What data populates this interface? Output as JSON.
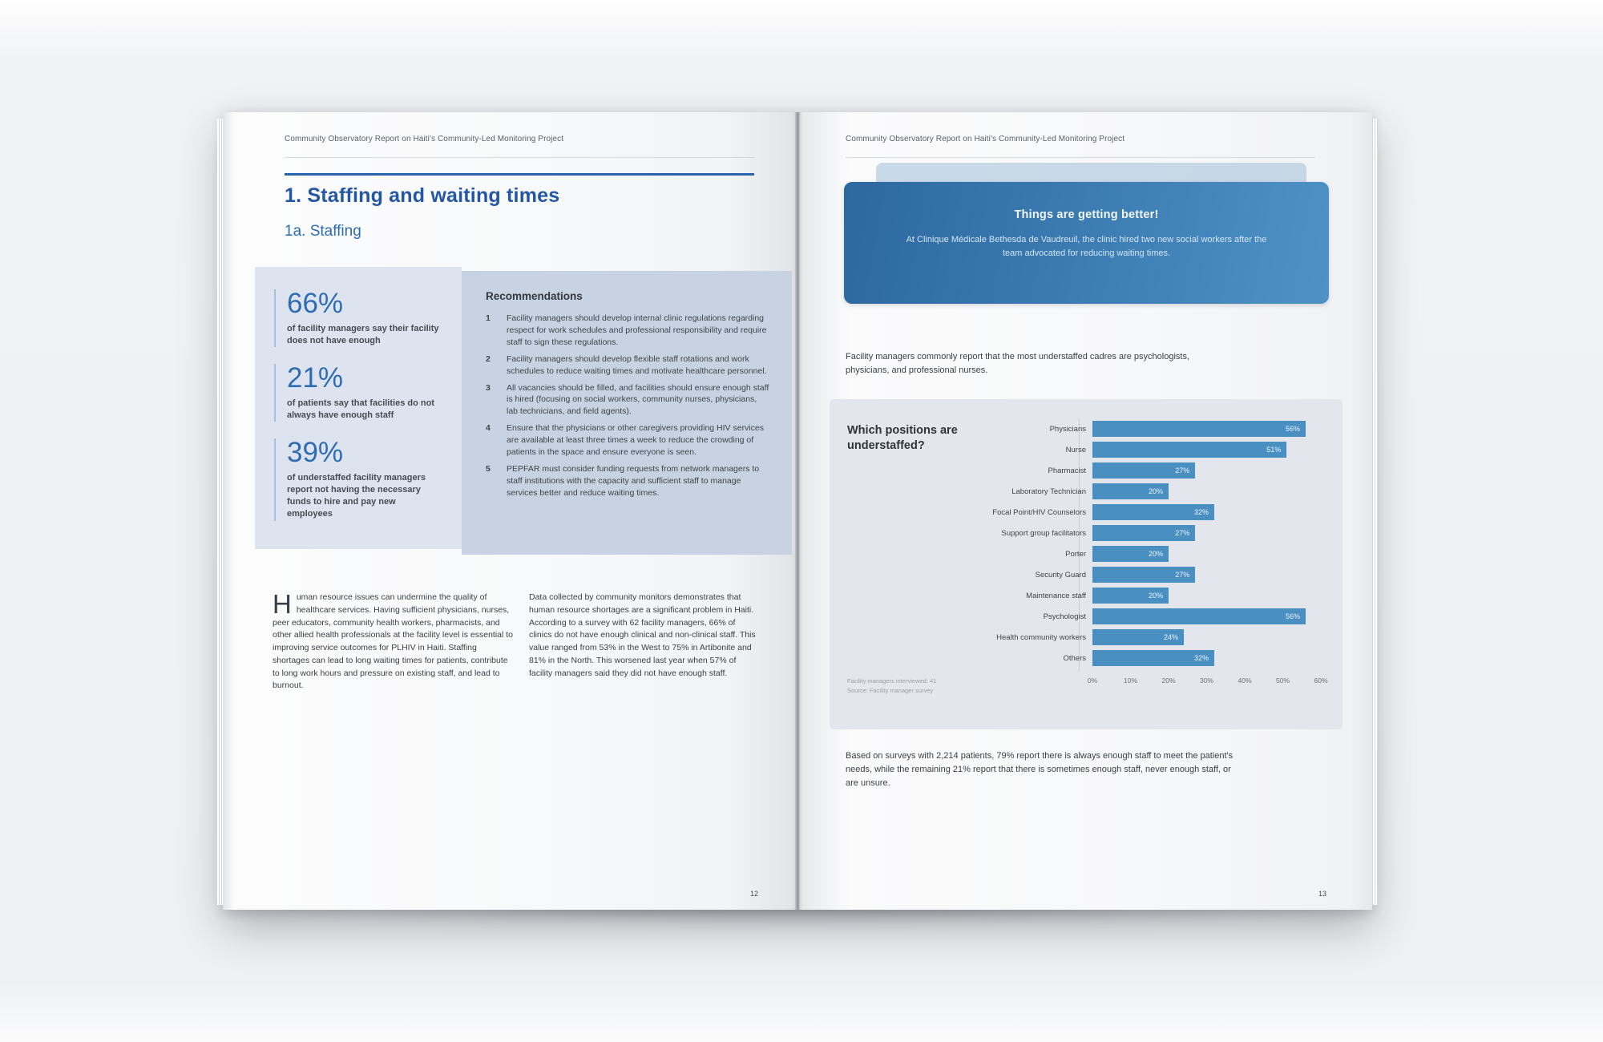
{
  "report": {
    "running_header": "Community Observatory Report on Haiti's Community-Led Monitoring Project",
    "left_page": {
      "title": "1. Staffing and waiting times",
      "subtitle": "1a. Staffing",
      "stats": [
        {
          "value": "66%",
          "caption": "of facility managers say their facility does not have enough"
        },
        {
          "value": "21%",
          "caption": "of patients say that facilities do not always have enough staff"
        },
        {
          "value": "39%",
          "caption": "of understaffed facility managers report not having the necessary funds to hire and pay new employees"
        }
      ],
      "recommendations": {
        "heading": "Recommendations",
        "items": [
          {
            "num": "1",
            "text": "Facility managers should develop internal clinic regulations regarding respect for work schedules and professional responsibility and require staff to sign these regulations."
          },
          {
            "num": "2",
            "text": "Facility managers should develop flexible staff rotations and work schedules to reduce waiting times and motivate healthcare personnel."
          },
          {
            "num": "3",
            "text": "All vacancies should be filled, and facilities should ensure enough staff is hired (focusing on social workers, community nurses, physicians, lab technicians, and field agents)."
          },
          {
            "num": "4",
            "text": "Ensure that the physicians or other caregivers providing HIV services are available at least three times a week to reduce the crowding of patients in the space and ensure everyone is seen."
          },
          {
            "num": "5",
            "text": "PEPFAR must consider funding requests from network managers to staff institutions with the capacity and sufficient staff to manage services better and reduce waiting times."
          }
        ]
      },
      "body_col1": "Human resource issues can undermine the quality of healthcare services. Having sufficient physicians, nurses, peer educators, community health workers, pharmacists, and other allied health professionals at the facility level is essential to improving service outcomes for PLHIV in Haiti. Staffing shortages can lead to long waiting times for patients, contribute to long work hours and pressure on existing staff, and lead to burnout.",
      "body_col2": "Data collected by community monitors demonstrates that human resource shortages are a significant problem in Haiti. According to a survey with 62 facility managers, 66% of clinics do not have enough clinical and non-clinical staff. This value ranged from 53% in the West to 75% in Artibonite and 81% in the North. This worsened last year when 57% of facility managers said they did not have enough staff.",
      "page_number": "12"
    },
    "right_page": {
      "callout": {
        "title": "Things are getting better!",
        "body": "At Clinique Médicale Bethesda de Vaudreuil, the clinic hired two new social workers after the team advocated for reducing waiting times."
      },
      "intro": "Facility managers commonly report that the most understaffed cadres are psychologists, physicians, and professional nurses.",
      "chart_footnote_line1": "Facility managers interviewed: 41",
      "chart_footnote_line2": "Source: Facility manager survey",
      "outro": "Based on surveys with 2,214 patients, 79% report there is always enough staff to meet the patient's needs, while the remaining 21% report that there is sometimes enough staff, never enough staff, or are unsure.",
      "page_number": "13"
    }
  },
  "chart_data": {
    "type": "bar",
    "orientation": "horizontal",
    "title": "Which positions are understaffed?",
    "categories": [
      "Physicians",
      "Nurse",
      "Pharmacist",
      "Laboratory Technician",
      "Focal Point/HIV Counselors",
      "Support group facilitators",
      "Porter",
      "Security Guard",
      "Maintenance staff",
      "Psychologist",
      "Health community workers",
      "Others"
    ],
    "values": [
      56,
      51,
      27,
      20,
      32,
      27,
      20,
      27,
      20,
      56,
      24,
      32
    ],
    "value_labels": [
      "56%",
      "51%",
      "27%",
      "20%",
      "32%",
      "27%",
      "20%",
      "27%",
      "20%",
      "56%",
      "24%",
      "32%"
    ],
    "x_ticks": [
      "0%",
      "10%",
      "20%",
      "30%",
      "40%",
      "50%",
      "60%"
    ],
    "xlim": [
      0,
      60
    ],
    "xlabel": "",
    "ylabel": "",
    "grid": "single vertical gridline at 30%",
    "legend": false,
    "bar_color": "#4a8fc2"
  },
  "colors": {
    "accent_blue": "#2a63ac",
    "stat_blue": "#2e6cb3",
    "stats_panel_bg": "#dde4ef",
    "recommendations_panel_bg": "#c7d2e2",
    "callout_gradient_start": "#2d689f",
    "callout_gradient_end": "#4e92c5",
    "chart_panel_bg": "#e3e7ed",
    "bar_blue": "#4a8fc2"
  }
}
